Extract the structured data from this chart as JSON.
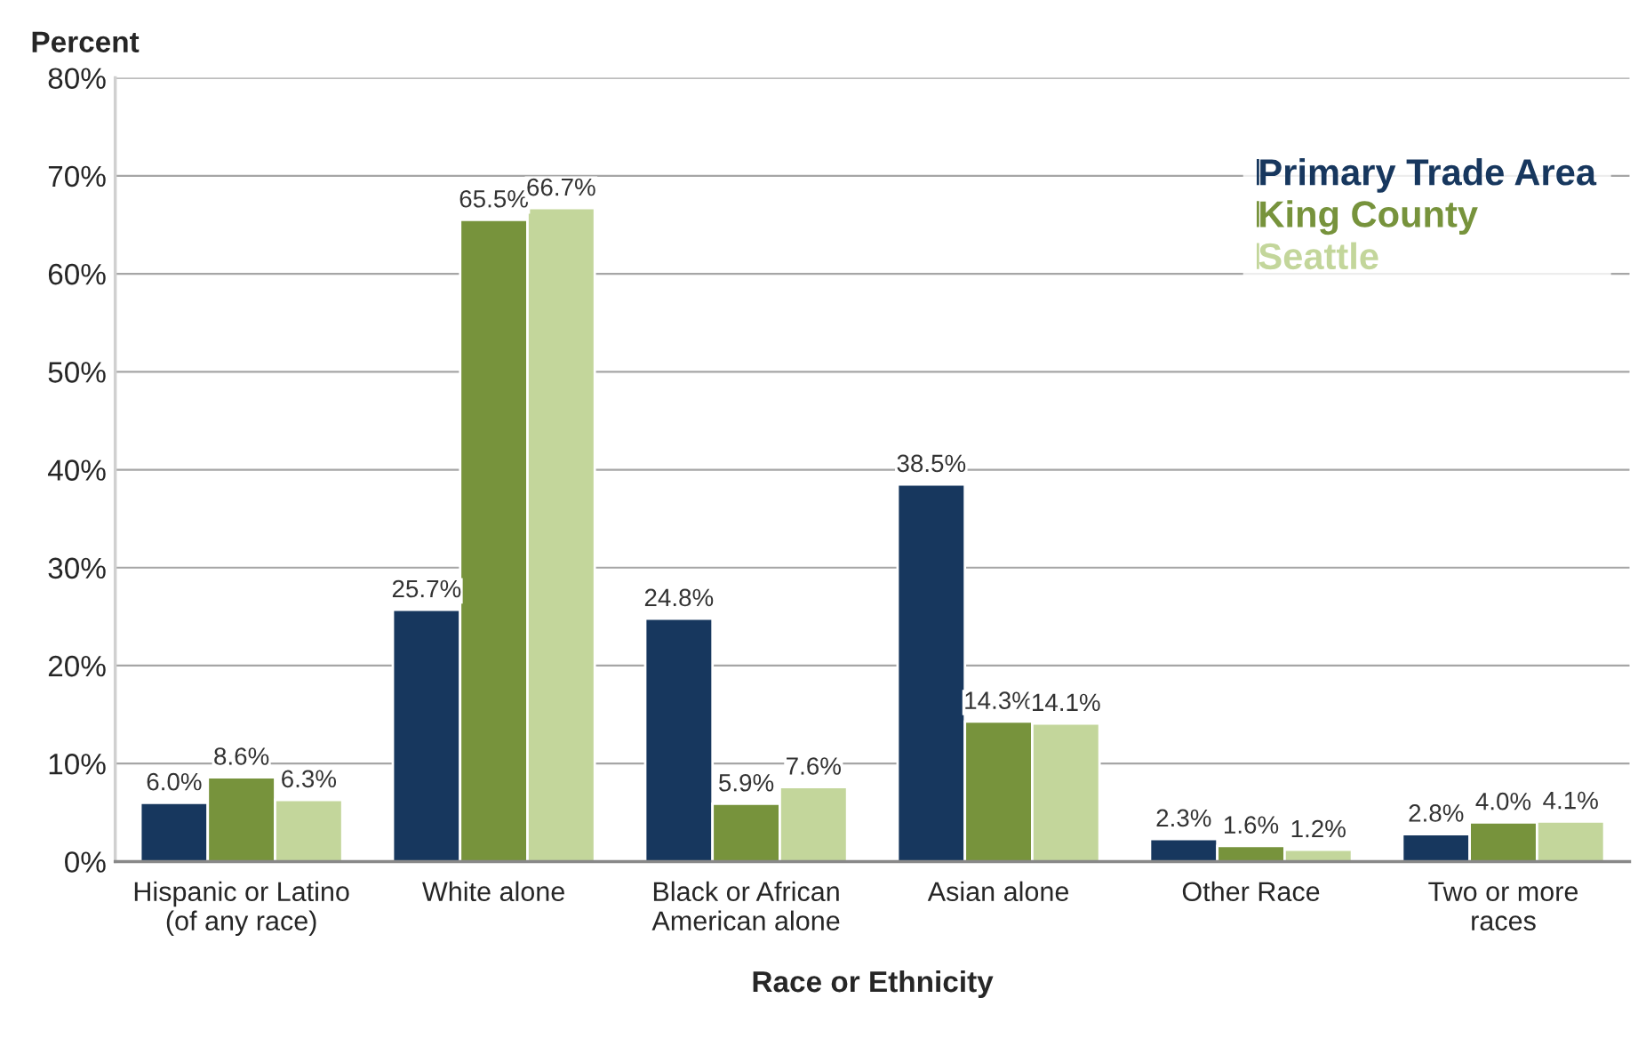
{
  "chart_data": {
    "type": "bar",
    "xlabel": "Race or Ethnicity",
    "ylabel": "Percent",
    "categories": [
      "Hispanic or Latino\n(of any race)",
      "White alone",
      "Black or African\nAmerican alone",
      "Asian alone",
      "Other Race",
      "Two or more\nraces"
    ],
    "series": [
      {
        "name": "Primary Trade Area",
        "color": "#17375e",
        "values": [
          6.0,
          25.7,
          24.8,
          38.5,
          2.3,
          2.8
        ],
        "value_labels": [
          "6.0%",
          "25.7%",
          "24.8%",
          "38.5%",
          "2.3%",
          "2.8%"
        ]
      },
      {
        "name": "King County",
        "color": "#77933c",
        "values": [
          8.6,
          65.5,
          5.9,
          14.3,
          1.6,
          4.0
        ],
        "value_labels": [
          "8.6%",
          "65.5%",
          "5.9%",
          "14.3%",
          "1.6%",
          "4.0%"
        ]
      },
      {
        "name": "Seattle",
        "color": "#c3d69b",
        "values": [
          6.3,
          66.7,
          7.6,
          14.1,
          1.2,
          4.1
        ],
        "value_labels": [
          "6.3%",
          "66.7%",
          "7.6%",
          "14.1%",
          "1.2%",
          "4.1%"
        ]
      }
    ],
    "ylim": [
      0,
      80
    ],
    "yticks": [
      {
        "value": 0,
        "label": "0%"
      },
      {
        "value": 10,
        "label": "10%"
      },
      {
        "value": 20,
        "label": "20%"
      },
      {
        "value": 30,
        "label": "30%"
      },
      {
        "value": 40,
        "label": "40%"
      },
      {
        "value": 50,
        "label": "50%"
      },
      {
        "value": 60,
        "label": "60%"
      },
      {
        "value": 70,
        "label": "70%"
      },
      {
        "value": 80,
        "label": "80%"
      }
    ],
    "grid": "y",
    "legend": "right"
  }
}
